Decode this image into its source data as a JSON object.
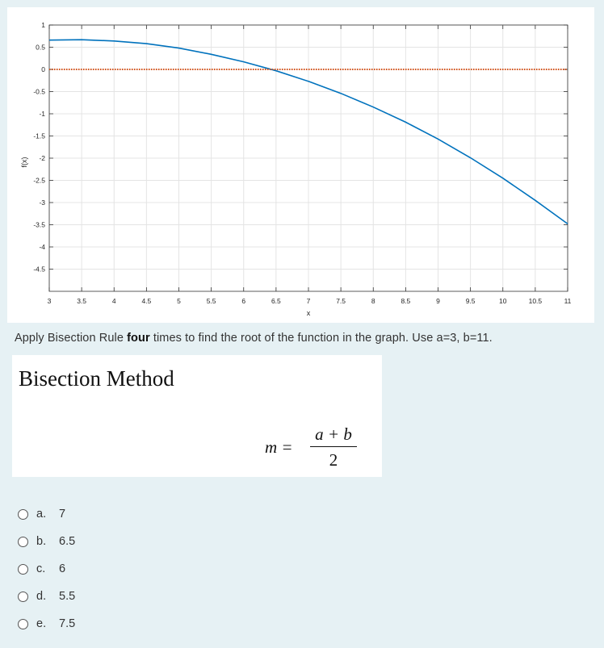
{
  "question": {
    "text_before": "Apply Bisection Rule ",
    "emphasis": "four",
    "text_after": " times to find the root of the function in the graph. Use a=3, b=11."
  },
  "formula_panel": {
    "heading": "Bisection Method",
    "lhs": "m =",
    "numerator": "a + b",
    "denominator": "2"
  },
  "options": [
    {
      "letter": "a.",
      "value": "7"
    },
    {
      "letter": "b.",
      "value": "6.5"
    },
    {
      "letter": "c.",
      "value": "6"
    },
    {
      "letter": "d.",
      "value": "5.5"
    },
    {
      "letter": "e.",
      "value": "7.5"
    }
  ],
  "chart_data": {
    "type": "line",
    "title": "",
    "xlabel": "x",
    "ylabel": "f(x)",
    "xlim": [
      3,
      11
    ],
    "ylim": [
      -5,
      1
    ],
    "xticks": [
      "3",
      "3.5",
      "4",
      "4.5",
      "5",
      "5.5",
      "6",
      "6.5",
      "7",
      "7.5",
      "8",
      "8.5",
      "9",
      "9.5",
      "10",
      "10.5",
      "11"
    ],
    "yticks": [
      "1",
      "0.5",
      "0",
      "-0.5",
      "-1",
      "-1.5",
      "-2",
      "-2.5",
      "-3",
      "-3.5",
      "-4",
      "-4.5"
    ],
    "grid": true,
    "series": [
      {
        "style": "solid",
        "color": "#0072bd",
        "x": [
          3,
          3.5,
          4,
          4.5,
          5,
          5.5,
          6,
          6.5,
          7,
          7.5,
          8,
          8.5,
          9,
          9.5,
          10,
          10.5,
          11
        ],
        "y": [
          0.66,
          0.67,
          0.64,
          0.58,
          0.48,
          0.34,
          0.17,
          -0.03,
          -0.27,
          -0.54,
          -0.85,
          -1.19,
          -1.57,
          -1.99,
          -2.45,
          -2.95,
          -3.48
        ]
      },
      {
        "style": "dotted",
        "color": "#d95319",
        "x": [
          3,
          11
        ],
        "y": [
          0,
          0
        ]
      }
    ]
  }
}
